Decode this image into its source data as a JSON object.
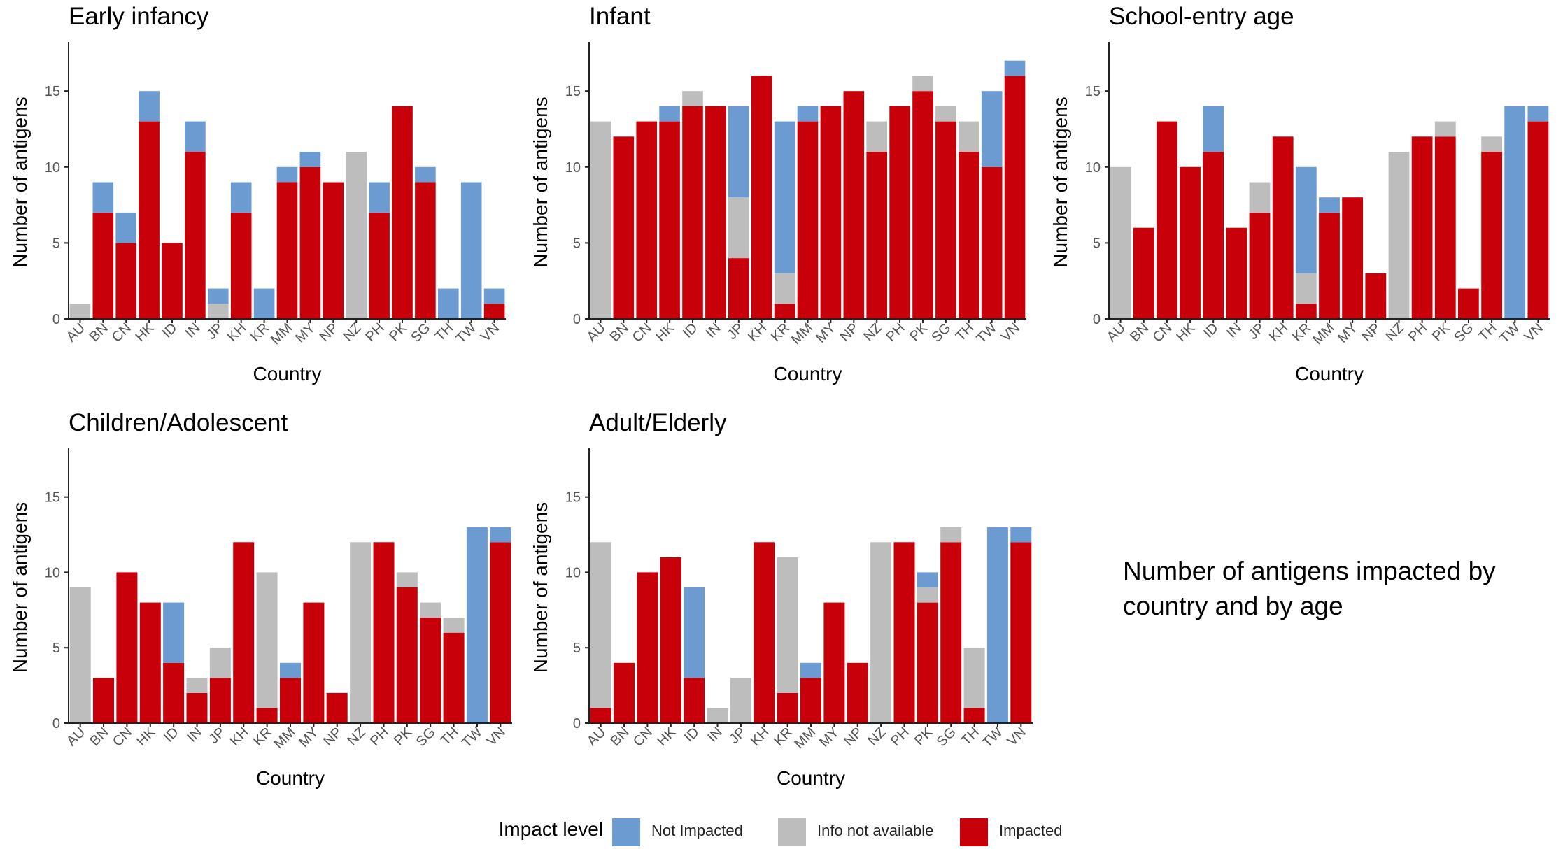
{
  "legend": {
    "title": "Impact level",
    "items": [
      {
        "key": "not_impacted",
        "label": "Not Impacted",
        "color": "#6b9bd1"
      },
      {
        "key": "info_na",
        "label": "Info not available",
        "color": "#bdbdbd"
      },
      {
        "key": "impacted",
        "label": "Impacted",
        "color": "#c8000a"
      }
    ]
  },
  "caption": "Number of antigens impacted by\ncountry and by age",
  "chart_data": [
    {
      "type": "bar",
      "stacked": true,
      "title": "Early infancy",
      "xlabel": "Country",
      "ylabel": "Number of antigens",
      "ylim": [
        0,
        18
      ],
      "yticks": [
        0,
        5,
        10,
        15
      ],
      "categories": [
        "AU",
        "BN",
        "CN",
        "HK",
        "ID",
        "IN",
        "JP",
        "KH",
        "KR",
        "MM",
        "MY",
        "NP",
        "NZ",
        "PH",
        "PK",
        "SG",
        "TH",
        "TW",
        "VN"
      ],
      "series": [
        {
          "name": "Impacted",
          "values": [
            0,
            7,
            5,
            13,
            5,
            11,
            0,
            7,
            0,
            9,
            10,
            9,
            0,
            7,
            14,
            9,
            0,
            0,
            1
          ]
        },
        {
          "name": "Info not available",
          "values": [
            1,
            0,
            0,
            0,
            0,
            0,
            1,
            0,
            0,
            0,
            0,
            0,
            11,
            0,
            0,
            0,
            0,
            0,
            0
          ]
        },
        {
          "name": "Not Impacted",
          "values": [
            0,
            2,
            2,
            2,
            0,
            2,
            1,
            2,
            2,
            1,
            1,
            0,
            0,
            2,
            0,
            1,
            2,
            9,
            1
          ]
        }
      ]
    },
    {
      "type": "bar",
      "stacked": true,
      "title": "Infant",
      "xlabel": "Country",
      "ylabel": "Number of antigens",
      "ylim": [
        0,
        18
      ],
      "yticks": [
        0,
        5,
        10,
        15
      ],
      "categories": [
        "AU",
        "BN",
        "CN",
        "HK",
        "ID",
        "IN",
        "JP",
        "KH",
        "KR",
        "MM",
        "MY",
        "NP",
        "NZ",
        "PH",
        "PK",
        "SG",
        "TH",
        "TW",
        "VN"
      ],
      "series": [
        {
          "name": "Impacted",
          "values": [
            0,
            12,
            13,
            13,
            14,
            14,
            4,
            16,
            1,
            13,
            14,
            15,
            11,
            14,
            15,
            13,
            11,
            10,
            16
          ]
        },
        {
          "name": "Info not available",
          "values": [
            13,
            0,
            0,
            0,
            1,
            0,
            4,
            0,
            2,
            0,
            0,
            0,
            2,
            0,
            1,
            1,
            2,
            0,
            0
          ]
        },
        {
          "name": "Not Impacted",
          "values": [
            0,
            0,
            0,
            1,
            0,
            0,
            6,
            0,
            10,
            1,
            0,
            0,
            0,
            0,
            0,
            0,
            0,
            5,
            1
          ]
        }
      ]
    },
    {
      "type": "bar",
      "stacked": true,
      "title": "School-entry age",
      "xlabel": "Country",
      "ylabel": "Number of antigens",
      "ylim": [
        0,
        18
      ],
      "yticks": [
        0,
        5,
        10,
        15
      ],
      "categories": [
        "AU",
        "BN",
        "CN",
        "HK",
        "ID",
        "IN",
        "JP",
        "KH",
        "KR",
        "MM",
        "MY",
        "NP",
        "NZ",
        "PH",
        "PK",
        "SG",
        "TH",
        "TW",
        "VN"
      ],
      "series": [
        {
          "name": "Impacted",
          "values": [
            0,
            6,
            13,
            10,
            11,
            6,
            7,
            12,
            1,
            7,
            8,
            3,
            0,
            12,
            12,
            2,
            11,
            0,
            13
          ]
        },
        {
          "name": "Info not available",
          "values": [
            10,
            0,
            0,
            0,
            0,
            0,
            2,
            0,
            2,
            0,
            0,
            0,
            11,
            0,
            1,
            0,
            1,
            0,
            0
          ]
        },
        {
          "name": "Not Impacted",
          "values": [
            0,
            0,
            0,
            0,
            3,
            0,
            0,
            0,
            7,
            1,
            0,
            0,
            0,
            0,
            0,
            0,
            0,
            14,
            1
          ]
        }
      ]
    },
    {
      "type": "bar",
      "stacked": true,
      "title": "Children/Adolescent",
      "xlabel": "Country",
      "ylabel": "Number of antigens",
      "ylim": [
        0,
        18
      ],
      "yticks": [
        0,
        5,
        10,
        15
      ],
      "categories": [
        "AU",
        "BN",
        "CN",
        "HK",
        "ID",
        "IN",
        "JP",
        "KH",
        "KR",
        "MM",
        "MY",
        "NP",
        "NZ",
        "PH",
        "PK",
        "SG",
        "TH",
        "TW",
        "VN"
      ],
      "series": [
        {
          "name": "Impacted",
          "values": [
            0,
            3,
            10,
            8,
            4,
            2,
            3,
            12,
            1,
            3,
            8,
            2,
            0,
            12,
            9,
            7,
            6,
            0,
            12
          ]
        },
        {
          "name": "Info not available",
          "values": [
            9,
            0,
            0,
            0,
            0,
            1,
            2,
            0,
            9,
            0,
            0,
            0,
            12,
            0,
            1,
            1,
            1,
            0,
            0
          ]
        },
        {
          "name": "Not Impacted",
          "values": [
            0,
            0,
            0,
            0,
            4,
            0,
            0,
            0,
            0,
            1,
            0,
            0,
            0,
            0,
            0,
            0,
            0,
            13,
            1
          ]
        }
      ]
    },
    {
      "type": "bar",
      "stacked": true,
      "title": "Adult/Elderly",
      "xlabel": "Country",
      "ylabel": "Number of antigens",
      "ylim": [
        0,
        18
      ],
      "yticks": [
        0,
        5,
        10,
        15
      ],
      "categories": [
        "AU",
        "BN",
        "CN",
        "HK",
        "ID",
        "IN",
        "JP",
        "KH",
        "KR",
        "MM",
        "MY",
        "NP",
        "NZ",
        "PH",
        "PK",
        "SG",
        "TH",
        "TW",
        "VN"
      ],
      "series": [
        {
          "name": "Impacted",
          "values": [
            1,
            4,
            10,
            11,
            3,
            0,
            0,
            12,
            2,
            3,
            8,
            4,
            0,
            12,
            8,
            12,
            1,
            0,
            12
          ]
        },
        {
          "name": "Info not available",
          "values": [
            11,
            0,
            0,
            0,
            0,
            1,
            3,
            0,
            9,
            0,
            0,
            0,
            12,
            0,
            1,
            1,
            4,
            0,
            0
          ]
        },
        {
          "name": "Not Impacted",
          "values": [
            0,
            0,
            0,
            0,
            6,
            0,
            0,
            0,
            0,
            1,
            0,
            0,
            0,
            0,
            1,
            0,
            0,
            13,
            1
          ]
        }
      ]
    }
  ]
}
